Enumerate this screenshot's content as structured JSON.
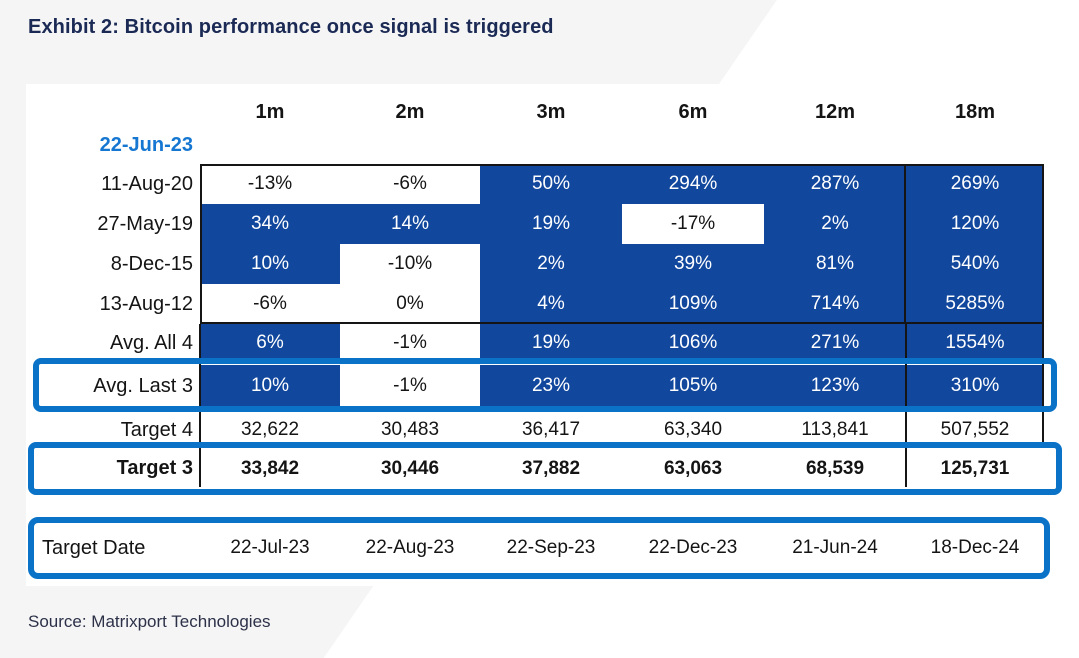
{
  "title": "Exhibit 2: Bitcoin performance once signal is triggered",
  "source": "Source: Matrixport Technologies",
  "colors": {
    "cell_blue": "#11479d",
    "highlight_blue": "#0a73c8",
    "signal_date_blue": "#1577d2",
    "title_navy": "#1b2a55",
    "source_gray": "#2c3148",
    "border_black": "#151515"
  },
  "chart_data": {
    "type": "table",
    "title": "Exhibit 2: Bitcoin performance once signal is triggered",
    "columns": [
      "1m",
      "2m",
      "3m",
      "6m",
      "12m",
      "18m"
    ],
    "signal_date": "22-Jun-23",
    "rows": [
      {
        "label": "11-Aug-20",
        "values": [
          "-13%",
          "-6%",
          "50%",
          "294%",
          "287%",
          "269%"
        ],
        "fills": [
          "white",
          "white",
          "blue",
          "blue",
          "blue",
          "blue"
        ],
        "highlight": false
      },
      {
        "label": "27-May-19",
        "values": [
          "34%",
          "14%",
          "19%",
          "-17%",
          "2%",
          "120%"
        ],
        "fills": [
          "blue",
          "blue",
          "blue",
          "white",
          "blue",
          "blue"
        ],
        "highlight": false
      },
      {
        "label": "8-Dec-15",
        "values": [
          "10%",
          "-10%",
          "2%",
          "39%",
          "81%",
          "540%"
        ],
        "fills": [
          "blue",
          "white",
          "blue",
          "blue",
          "blue",
          "blue"
        ],
        "highlight": false
      },
      {
        "label": "13-Aug-12",
        "values": [
          "-6%",
          "0%",
          "4%",
          "109%",
          "714%",
          "5285%"
        ],
        "fills": [
          "white",
          "white",
          "blue",
          "blue",
          "blue",
          "blue"
        ],
        "highlight": false
      },
      {
        "label": "Avg. All 4",
        "values": [
          "6%",
          "-1%",
          "19%",
          "106%",
          "271%",
          "1554%"
        ],
        "fills": [
          "blue",
          "white",
          "blue",
          "blue",
          "blue",
          "blue"
        ],
        "highlight": false
      },
      {
        "label": "Avg. Last 3",
        "values": [
          "10%",
          "-1%",
          "23%",
          "105%",
          "123%",
          "310%"
        ],
        "fills": [
          "blue",
          "white",
          "blue",
          "blue",
          "blue",
          "blue"
        ],
        "highlight": true
      },
      {
        "label": "Target 4",
        "values": [
          "32,622",
          "30,483",
          "36,417",
          "63,340",
          "113,841",
          "507,552"
        ],
        "fills": [
          "none",
          "none",
          "none",
          "none",
          "none",
          "none"
        ],
        "highlight": false
      },
      {
        "label": "Target 3",
        "values": [
          "33,842",
          "30,446",
          "37,882",
          "63,063",
          "68,539",
          "125,731"
        ],
        "fills": [
          "none",
          "none",
          "none",
          "none",
          "none",
          "none"
        ],
        "highlight": true
      },
      {
        "label": "Target Date",
        "values": [
          "22-Jul-23",
          "22-Aug-23",
          "22-Sep-23",
          "22-Dec-23",
          "21-Jun-24",
          "18-Dec-24"
        ],
        "fills": [
          "none",
          "none",
          "none",
          "none",
          "none",
          "none"
        ],
        "highlight": true
      }
    ]
  }
}
